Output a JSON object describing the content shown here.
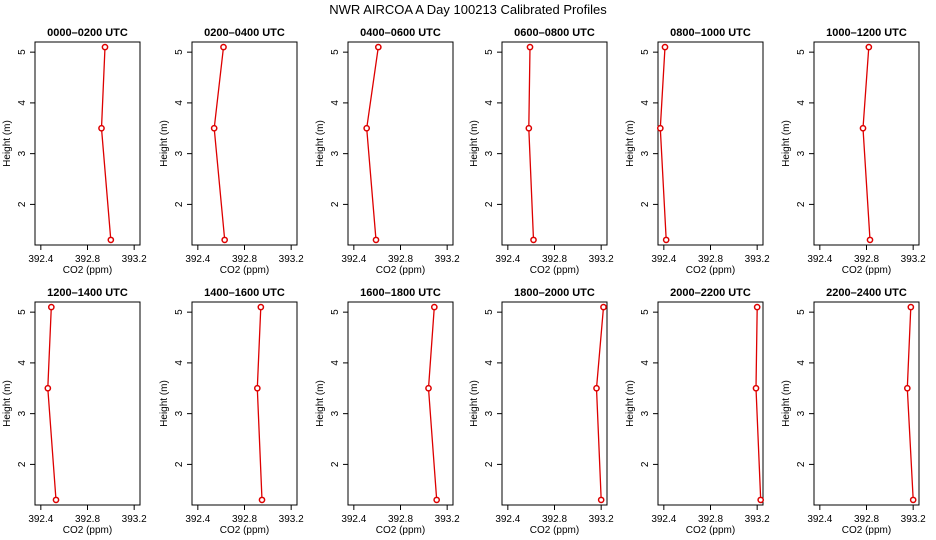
{
  "title": "NWR AIRCOA A  Day 100213  Calibrated Profiles",
  "colors": {
    "series": "#dd0000",
    "axis": "#000000",
    "background": "#ffffff"
  },
  "chart_data": {
    "type": "line",
    "layout": "small multiples, 2 rows x 6 columns",
    "xlabel": "CO2 (ppm)",
    "ylabel": "Height (m)",
    "xlim": [
      392.35,
      393.25
    ],
    "ylim": [
      1.2,
      5.2
    ],
    "xticks": [
      392.4,
      392.8,
      393.2
    ],
    "xtick_labels": [
      "392.4",
      "392.8",
      "393.2"
    ],
    "yticks": [
      2,
      3,
      4,
      5
    ],
    "ytick_labels": [
      "2",
      "3",
      "4",
      "5"
    ],
    "grid": false,
    "panels": [
      {
        "title": "0000–0200 UTC",
        "x": [
          392.95,
          392.92,
          393.0
        ],
        "y": [
          5.1,
          3.5,
          1.3
        ]
      },
      {
        "title": "0200–0400 UTC",
        "x": [
          392.62,
          392.54,
          392.63
        ],
        "y": [
          5.1,
          3.5,
          1.3
        ]
      },
      {
        "title": "0400–0600 UTC",
        "x": [
          392.61,
          392.51,
          392.59
        ],
        "y": [
          5.1,
          3.5,
          1.3
        ]
      },
      {
        "title": "0600–0800 UTC",
        "x": [
          392.59,
          392.58,
          392.62
        ],
        "y": [
          5.1,
          3.5,
          1.3
        ]
      },
      {
        "title": "0800–1000 UTC",
        "x": [
          392.41,
          392.37,
          392.42
        ],
        "y": [
          5.1,
          3.5,
          1.3
        ]
      },
      {
        "title": "1000–1200 UTC",
        "x": [
          392.82,
          392.77,
          392.83
        ],
        "y": [
          5.1,
          3.5,
          1.3
        ]
      },
      {
        "title": "1200–1400 UTC",
        "x": [
          392.49,
          392.46,
          392.53
        ],
        "y": [
          5.1,
          3.5,
          1.3
        ]
      },
      {
        "title": "1400–1600 UTC",
        "x": [
          392.94,
          392.91,
          392.95
        ],
        "y": [
          5.1,
          3.5,
          1.3
        ]
      },
      {
        "title": "1600–1800 UTC",
        "x": [
          393.09,
          393.04,
          393.11
        ],
        "y": [
          5.1,
          3.5,
          1.3
        ]
      },
      {
        "title": "1800–2000 UTC",
        "x": [
          393.22,
          393.16,
          393.2
        ],
        "y": [
          5.1,
          3.5,
          1.3
        ]
      },
      {
        "title": "2000–2200 UTC",
        "x": [
          393.2,
          393.19,
          393.23
        ],
        "y": [
          5.1,
          3.5,
          1.3
        ]
      },
      {
        "title": "2200–2400 UTC",
        "x": [
          393.18,
          393.15,
          393.2
        ],
        "y": [
          5.1,
          3.5,
          1.3
        ]
      }
    ]
  }
}
